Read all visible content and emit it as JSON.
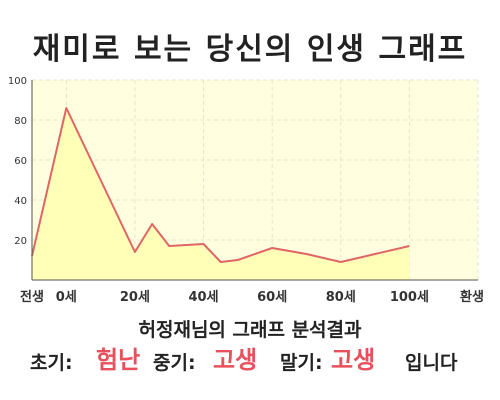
{
  "title": "재미로 보는 당신의 인생 그래프",
  "colors": {
    "plot_fill": "#ffffe0",
    "area_fill": "#ffffb8",
    "line": "#e06666",
    "grid": "#e6e6cc",
    "axis": "#555555",
    "highlight": "#e8505b"
  },
  "chart_data": {
    "type": "area",
    "x": [
      -10,
      0,
      10,
      20,
      25,
      30,
      40,
      45,
      50,
      60,
      70,
      80,
      90,
      100
    ],
    "y": [
      12,
      86,
      50,
      14,
      28,
      17,
      18,
      9,
      10,
      16,
      13,
      9,
      13,
      17
    ],
    "ylim": [
      0,
      100
    ],
    "y_ticks": [
      20,
      40,
      60,
      80,
      100
    ],
    "x_tick_labels": [
      {
        "x": -10,
        "label": "전생"
      },
      {
        "x": 0,
        "label": "0세"
      },
      {
        "x": 20,
        "label": "20세"
      },
      {
        "x": 40,
        "label": "40세"
      },
      {
        "x": 60,
        "label": "60세"
      },
      {
        "x": 80,
        "label": "80세"
      },
      {
        "x": 100,
        "label": "100세"
      },
      {
        "x": 120,
        "label": "환생"
      }
    ],
    "grid": true,
    "legend": "none"
  },
  "analysis": {
    "heading": "허정재님의 그래프 분석결과",
    "early_label": "초기:",
    "early_value": "험난",
    "mid_label": "중기:",
    "mid_value": "고생",
    "late_label": "말기:",
    "late_value": "고생",
    "suffix": "입니다"
  }
}
